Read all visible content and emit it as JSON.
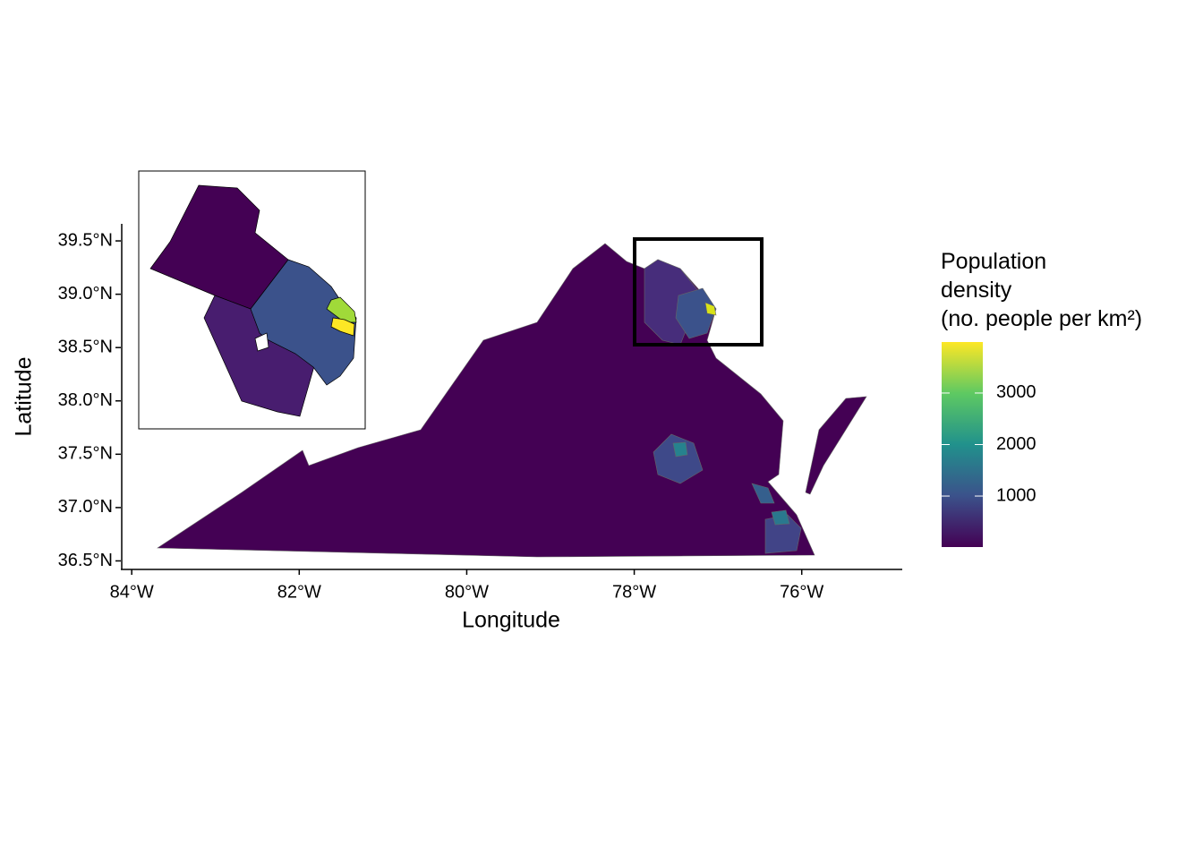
{
  "chart_data": {
    "type": "map",
    "xlabel": "Longitude",
    "ylabel": "Latitude",
    "xlim": [
      -84.13,
      -74.8
    ],
    "ylim": [
      36.42,
      39.66
    ],
    "xticks": [
      {
        "value": -84,
        "label": "84°W"
      },
      {
        "value": -82,
        "label": "82°W"
      },
      {
        "value": -80,
        "label": "80°W"
      },
      {
        "value": -78,
        "label": "78°W"
      },
      {
        "value": -76,
        "label": "76°W"
      }
    ],
    "yticks": [
      {
        "value": 36.5,
        "label": "36.5°N"
      },
      {
        "value": 37.0,
        "label": "37.0°N"
      },
      {
        "value": 37.5,
        "label": "37.5°N"
      },
      {
        "value": 38.0,
        "label": "38.0°N"
      },
      {
        "value": 38.5,
        "label": "38.5°N"
      },
      {
        "value": 39.0,
        "label": "39.0°N"
      },
      {
        "value": 39.5,
        "label": "39.5°N"
      }
    ],
    "legend": {
      "title": [
        "Population",
        "density",
        "(no. people per km²)"
      ],
      "clim": [
        10,
        3990
      ],
      "ticks": [
        1000,
        2000,
        3000
      ],
      "colors": [
        "#440154",
        "#3b528b",
        "#21918c",
        "#5ec962",
        "#fde725"
      ]
    }
  }
}
